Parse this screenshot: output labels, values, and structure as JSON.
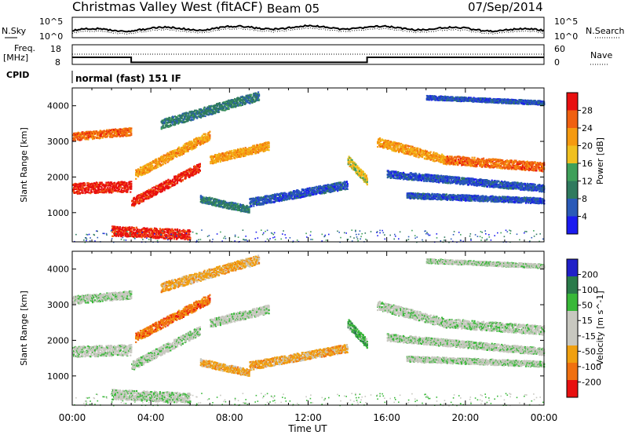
{
  "header": {
    "title": "Christmas Valley West (fitACF)",
    "beam": "Beam 05",
    "date": "07/Sep/2014"
  },
  "nsky_panel": {
    "left_label": "N.Sky",
    "right_label": "N.Search",
    "y_ticks": [
      "10^5",
      "10^0"
    ]
  },
  "freq_panel": {
    "left_label_1": "Freq.",
    "left_label_2": "[MHz]",
    "right_label": "Nave",
    "left_ticks": [
      "18",
      "8"
    ],
    "right_ticks": [
      "60",
      "0"
    ]
  },
  "cpid": {
    "label": "CPID",
    "value": "normal (fast) 151 IF"
  },
  "colors": {
    "power": [
      "#1a1af0",
      "#2a5ab8",
      "#2f7a5e",
      "#3fa05a",
      "#f0c020",
      "#f59a10",
      "#f06010",
      "#e81010"
    ],
    "velocity": [
      "#2020c8",
      "#2a7a4a",
      "#38b838",
      "#c8c8c0",
      "#c8c8c0",
      "#f0a010",
      "#f07010",
      "#e81010"
    ]
  },
  "chart_data": [
    {
      "type": "heatmap",
      "name": "power-panel",
      "xlabel": "",
      "ylabel": "Slant Range [km]",
      "xlim": [
        0,
        24
      ],
      "ylim": [
        180,
        4500
      ],
      "y_ticks": [
        1000,
        2000,
        3000,
        4000
      ],
      "colorbar": {
        "label": "Power [dB]",
        "ticks": [
          "4",
          "8",
          "12",
          "16",
          "20",
          "24",
          "28"
        ]
      }
    },
    {
      "type": "heatmap",
      "name": "velocity-panel",
      "xlabel": "Time UT",
      "ylabel": "Slant Range [km]",
      "xlim": [
        0,
        24
      ],
      "ylim": [
        180,
        4500
      ],
      "x_ticks": [
        "00:00",
        "04:00",
        "08:00",
        "12:00",
        "16:00",
        "20:00",
        "00:00"
      ],
      "y_ticks": [
        1000,
        2000,
        3000,
        4000
      ],
      "colorbar": {
        "label": "Velocity [m s^-1]",
        "ticks": [
          "200",
          "100",
          "50",
          "15",
          "-15",
          "-50",
          "-100",
          "-200"
        ]
      }
    }
  ]
}
